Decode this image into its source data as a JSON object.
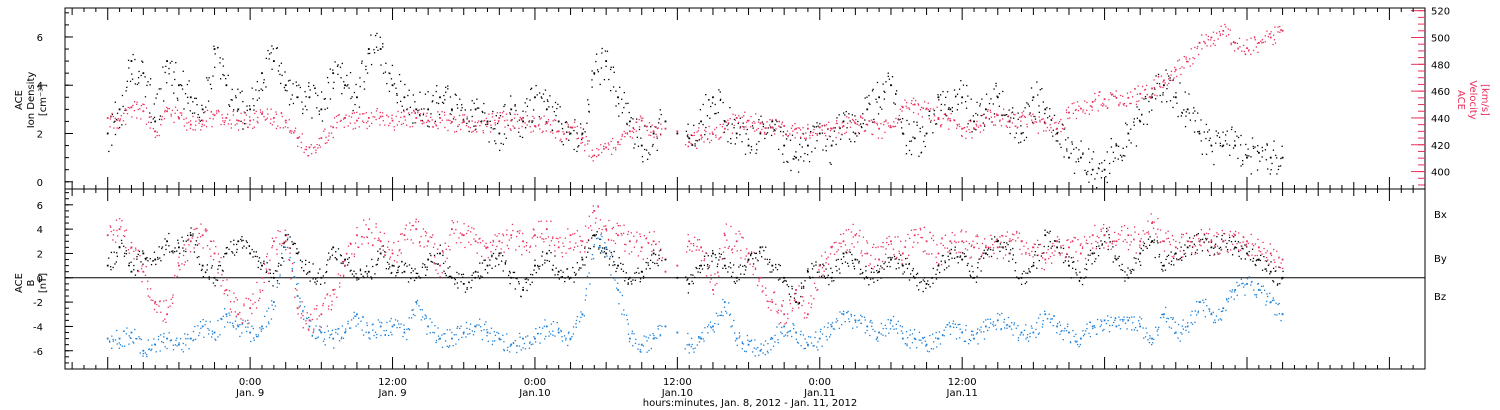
{
  "chart_data": [
    {
      "type": "scatter",
      "panel": "top",
      "ylabel_left": [
        "ACE",
        "Ion Density",
        "[cm⁻³]"
      ],
      "ylabel_right": [
        "ACE",
        "Velocity",
        "[km/s]"
      ],
      "ylim_left": [
        -0.3,
        7.2
      ],
      "ylim_right": [
        387,
        522
      ],
      "yticks_left": [
        "0",
        "2",
        "4",
        "6"
      ],
      "yticks_right": [
        "400",
        "420",
        "440",
        "460",
        "480",
        "500",
        "520"
      ],
      "series": [
        {
          "name": "Ion Density",
          "axis": "left",
          "color": "#000000",
          "x": [
            -12,
            -11,
            -10,
            -9,
            -8,
            -7,
            -6,
            -5,
            -4,
            -3,
            -2,
            -1,
            0,
            1,
            2,
            3,
            4,
            5,
            6,
            7,
            8,
            9,
            10,
            11,
            12,
            13,
            14,
            15,
            16,
            17,
            18,
            19,
            20,
            21,
            22,
            23,
            24,
            25,
            26,
            27,
            28,
            29,
            30,
            31,
            32,
            33,
            34,
            35,
            36,
            37,
            38,
            39,
            40,
            41,
            42,
            43,
            44,
            45,
            46,
            47,
            48,
            49,
            50,
            51,
            52,
            53,
            54,
            55,
            56,
            57,
            58,
            59,
            60,
            61,
            62,
            63,
            64,
            65,
            66,
            67,
            68,
            69,
            70,
            71,
            72,
            73,
            74,
            75,
            76,
            77,
            78,
            79,
            80,
            81,
            82,
            83,
            84,
            85,
            86,
            87
          ],
          "y": [
            2.0,
            3.0,
            5.0,
            4.5,
            2.5,
            5.0,
            4.0,
            3.5,
            3.0,
            5.5,
            4.0,
            3.0,
            3.0,
            4.5,
            5.0,
            4.0,
            3.5,
            3.5,
            3.0,
            4.5,
            4.0,
            3.5,
            5.5,
            5.5,
            4.0,
            3.5,
            3.0,
            3.0,
            3.5,
            3.0,
            2.5,
            3.0,
            2.5,
            2.0,
            3.0,
            2.5,
            3.5,
            3.0,
            2.5,
            2.0,
            2.0,
            4.5,
            5.0,
            3.5,
            2.5,
            1.5,
            2.0,
            2.5,
            2.0,
            1.8,
            2.5,
            3.5,
            2.5,
            2.0,
            1.5,
            2.0,
            2.5,
            1.5,
            1.0,
            1.5,
            2.0,
            1.5,
            2.5,
            2.0,
            3.0,
            3.5,
            4.0,
            2.0,
            1.8,
            2.0,
            3.5,
            3.0,
            3.5,
            2.5,
            3.0,
            3.5,
            2.5,
            2.0,
            3.5,
            3.0,
            2.0,
            1.0,
            1.0,
            0.5,
            0.5,
            1.5,
            2.0,
            2.5,
            3.5,
            4.0,
            3.5,
            3.0,
            2.0,
            1.5,
            1.5,
            1.5,
            1.0,
            1.2,
            1.0,
            1.0
          ]
        },
        {
          "name": "Velocity",
          "axis": "right",
          "color": "#e8305c",
          "x": [
            -12,
            -11,
            -10,
            -9,
            -8,
            -7,
            -6,
            -5,
            -4,
            -3,
            -2,
            -1,
            0,
            1,
            2,
            3,
            4,
            5,
            6,
            7,
            8,
            9,
            10,
            11,
            12,
            13,
            14,
            15,
            16,
            17,
            18,
            19,
            20,
            21,
            22,
            23,
            24,
            25,
            26,
            27,
            28,
            29,
            30,
            31,
            32,
            33,
            34,
            35,
            36,
            37,
            38,
            39,
            40,
            41,
            42,
            43,
            44,
            45,
            46,
            47,
            48,
            49,
            50,
            51,
            52,
            53,
            54,
            55,
            56,
            57,
            58,
            59,
            60,
            61,
            62,
            63,
            64,
            65,
            66,
            67,
            68,
            69,
            70,
            71,
            72,
            73,
            74,
            75,
            76,
            77,
            78,
            79,
            80,
            81,
            82,
            83,
            84,
            85,
            86,
            87
          ],
          "y": [
            440,
            438,
            448,
            445,
            430,
            445,
            440,
            435,
            438,
            442,
            440,
            438,
            438,
            443,
            440,
            438,
            425,
            418,
            425,
            433,
            440,
            438,
            440,
            441,
            438,
            441,
            440,
            438,
            440,
            437,
            437,
            434,
            436,
            440,
            438,
            440,
            434,
            436,
            430,
            433,
            425,
            412,
            418,
            422,
            430,
            438,
            430,
            432,
            430,
            422,
            427,
            428,
            432,
            440,
            438,
            436,
            433,
            434,
            432,
            432,
            433,
            432,
            434,
            436,
            435,
            432,
            433,
            448,
            450,
            447,
            440,
            438,
            432,
            432,
            440,
            442,
            438,
            441,
            436,
            436,
            432,
            444,
            447,
            452,
            454,
            455,
            455,
            458,
            462,
            468,
            476,
            482,
            496,
            500,
            505,
            496,
            492,
            496,
            500,
            505
          ]
        }
      ]
    },
    {
      "type": "scatter",
      "panel": "bottom",
      "ylabel_left": [
        "ACE",
        "B",
        "[nT]"
      ],
      "ylim": [
        -7.5,
        7.3
      ],
      "yticks": [
        "-6",
        "-4",
        "-2",
        "0",
        "2",
        "4",
        "6"
      ],
      "legend": [
        "Bx",
        "By",
        "Bz"
      ],
      "legend_placement": "right",
      "series": [
        {
          "name": "Bx",
          "color": "#000000",
          "x": [
            -12,
            -11,
            -10,
            -9,
            -8,
            -7,
            -6,
            -5,
            -4,
            -3,
            -2,
            -1,
            0,
            1,
            2,
            3,
            4,
            5,
            6,
            7,
            8,
            9,
            10,
            11,
            12,
            13,
            14,
            15,
            16,
            17,
            18,
            19,
            20,
            21,
            22,
            23,
            24,
            25,
            26,
            27,
            28,
            29,
            30,
            31,
            32,
            33,
            34,
            35,
            36,
            37,
            38,
            39,
            40,
            41,
            42,
            43,
            44,
            45,
            46,
            47,
            48,
            49,
            50,
            51,
            52,
            53,
            54,
            55,
            56,
            57,
            58,
            59,
            60,
            61,
            62,
            63,
            64,
            65,
            66,
            67,
            68,
            69,
            70,
            71,
            72,
            73,
            74,
            75,
            76,
            77,
            78,
            79,
            80,
            81,
            82,
            83,
            84,
            85,
            86,
            87
          ],
          "y": [
            1.0,
            2.5,
            0.5,
            2.0,
            1.5,
            3.0,
            2.5,
            3.5,
            1.0,
            0.0,
            2.0,
            3.0,
            2.0,
            1.0,
            0.0,
            3.5,
            2.0,
            0.5,
            0.0,
            2.5,
            1.5,
            0.0,
            0.5,
            2.0,
            1.0,
            0.5,
            0.0,
            1.5,
            2.0,
            0.0,
            -0.5,
            0.5,
            1.0,
            2.0,
            0.0,
            -1.0,
            1.0,
            2.0,
            0.5,
            0.0,
            1.5,
            3.5,
            2.0,
            1.0,
            0.0,
            0.5,
            2.0,
            1.5,
            0.0,
            -0.5,
            1.0,
            2.0,
            1.0,
            0.0,
            1.5,
            2.5,
            1.0,
            0.0,
            -2.0,
            0.5,
            1.0,
            0.0,
            2.0,
            1.5,
            0.0,
            0.5,
            1.5,
            1.0,
            0.0,
            -0.5,
            1.0,
            2.0,
            1.5,
            0.0,
            2.0,
            3.0,
            2.0,
            0.0,
            1.0,
            3.5,
            2.5,
            1.0,
            0.0,
            2.0,
            3.5,
            1.5,
            0.0,
            2.0,
            3.0,
            1.0,
            2.0,
            2.5,
            3.0,
            2.5,
            3.0,
            2.5,
            2.0,
            1.5,
            0.5,
            0.0
          ]
        },
        {
          "name": "By",
          "color": "#1a7fd6",
          "x": [
            -12,
            -11,
            -10,
            -9,
            -8,
            -7,
            -6,
            -5,
            -4,
            -3,
            -2,
            -1,
            0,
            1,
            2,
            3,
            4,
            5,
            6,
            7,
            8,
            9,
            10,
            11,
            12,
            13,
            14,
            15,
            16,
            17,
            18,
            19,
            20,
            21,
            22,
            23,
            24,
            25,
            26,
            27,
            28,
            29,
            30,
            31,
            32,
            33,
            34,
            35,
            36,
            37,
            38,
            39,
            40,
            41,
            42,
            43,
            44,
            45,
            46,
            47,
            48,
            49,
            50,
            51,
            52,
            53,
            54,
            55,
            56,
            57,
            58,
            59,
            60,
            61,
            62,
            63,
            64,
            65,
            66,
            67,
            68,
            69,
            70,
            71,
            72,
            73,
            74,
            75,
            76,
            77,
            78,
            79,
            80,
            81,
            82,
            83,
            84,
            85,
            86,
            87
          ],
          "y": [
            -5.0,
            -5.0,
            -4.5,
            -6.0,
            -5.5,
            -5.0,
            -5.5,
            -5.0,
            -4.0,
            -4.5,
            -3.0,
            -4.0,
            -4.5,
            -4.0,
            -2.0,
            3.5,
            -1.5,
            -4.0,
            -4.5,
            -5.0,
            -4.5,
            -3.0,
            -4.5,
            -4.0,
            -4.0,
            -4.5,
            -2.0,
            -4.0,
            -5.0,
            -5.0,
            -4.5,
            -4.0,
            -4.5,
            -5.0,
            -5.5,
            -5.0,
            -5.0,
            -4.0,
            -4.5,
            -5.0,
            -3.0,
            3.5,
            2.5,
            -1.0,
            -5.0,
            -5.5,
            -5.0,
            -4.0,
            -4.5,
            -5.5,
            -5.0,
            -4.0,
            -2.0,
            -5.0,
            -5.5,
            -6.0,
            -5.0,
            -4.0,
            -4.5,
            -5.5,
            -5.0,
            -4.0,
            -3.0,
            -3.5,
            -4.0,
            -4.5,
            -3.5,
            -5.0,
            -5.0,
            -5.5,
            -5.0,
            -4.0,
            -4.5,
            -5.0,
            -4.0,
            -3.5,
            -4.0,
            -4.5,
            -4.5,
            -3.0,
            -4.0,
            -4.5,
            -5.0,
            -4.0,
            -3.5,
            -4.0,
            -3.5,
            -4.0,
            -5.0,
            -3.0,
            -4.5,
            -4.0,
            -2.0,
            -3.0,
            -2.5,
            -1.0,
            -0.5,
            -1.0,
            -2.0,
            -3.0
          ]
        },
        {
          "name": "Bz",
          "color": "#e8305c",
          "x": [
            -12,
            -11,
            -10,
            -9,
            -8,
            -7,
            -6,
            -5,
            -4,
            -3,
            -2,
            -1,
            0,
            1,
            2,
            3,
            4,
            5,
            6,
            7,
            8,
            9,
            10,
            11,
            12,
            13,
            14,
            15,
            16,
            17,
            18,
            19,
            20,
            21,
            22,
            23,
            24,
            25,
            26,
            27,
            28,
            29,
            30,
            31,
            32,
            33,
            34,
            35,
            36,
            37,
            38,
            39,
            40,
            41,
            42,
            43,
            44,
            45,
            46,
            47,
            48,
            49,
            50,
            51,
            52,
            53,
            54,
            55,
            56,
            57,
            58,
            59,
            60,
            61,
            62,
            63,
            64,
            65,
            66,
            67,
            68,
            69,
            70,
            71,
            72,
            73,
            74,
            75,
            76,
            77,
            78,
            79,
            80,
            81,
            82,
            83,
            84,
            85,
            86,
            87
          ],
          "y": [
            3.5,
            4.0,
            2.5,
            0.5,
            -2.0,
            -3.0,
            1.0,
            3.0,
            3.5,
            2.0,
            -1.0,
            -3.0,
            -2.5,
            0.0,
            3.0,
            3.0,
            -2.5,
            -3.5,
            -3.0,
            -1.0,
            1.0,
            3.5,
            4.0,
            3.0,
            2.0,
            3.5,
            4.0,
            3.0,
            1.0,
            4.0,
            3.5,
            3.0,
            2.5,
            3.0,
            3.5,
            3.0,
            3.5,
            4.0,
            2.5,
            3.5,
            3.0,
            5.5,
            4.0,
            3.5,
            3.0,
            2.5,
            3.0,
            0.5,
            1.0,
            3.0,
            2.5,
            -1.0,
            3.5,
            3.0,
            2.0,
            0.0,
            -2.0,
            -3.0,
            -1.0,
            -3.0,
            1.0,
            2.5,
            3.0,
            3.5,
            2.0,
            1.5,
            3.0,
            2.0,
            3.5,
            3.0,
            2.0,
            3.0,
            3.0,
            2.5,
            2.5,
            2.5,
            3.0,
            3.0,
            2.5,
            1.5,
            3.0,
            2.5,
            2.0,
            3.5,
            3.5,
            3.0,
            3.5,
            3.0,
            4.5,
            3.0,
            2.5,
            3.0,
            3.0,
            3.0,
            3.0,
            3.5,
            3.0,
            2.5,
            2.0,
            1.5
          ]
        }
      ]
    }
  ],
  "x_axis": {
    "xlim_hours": [
      -15.6,
      99
    ],
    "major_ticks": [
      {
        "hours": 0,
        "time": "0:00",
        "date": "Jan. 9"
      },
      {
        "hours": 12,
        "time": "12:00",
        "date": "Jan. 9"
      },
      {
        "hours": 24,
        "time": "0:00",
        "date": "Jan.10"
      },
      {
        "hours": 36,
        "time": "12:00",
        "date": "Jan.10"
      },
      {
        "hours": 48,
        "time": "0:00",
        "date": "Jan.11"
      },
      {
        "hours": 60,
        "time": "12:00",
        "date": "Jan.11"
      }
    ],
    "label": "hours:minutes, Jan.  8, 2012 - Jan. 11, 2012"
  },
  "data_gaps_hours": [
    [
      34.7,
      36.6
    ]
  ],
  "colors": {
    "black": "#000000",
    "red": "#e8305c",
    "blue": "#1a7fd6"
  }
}
